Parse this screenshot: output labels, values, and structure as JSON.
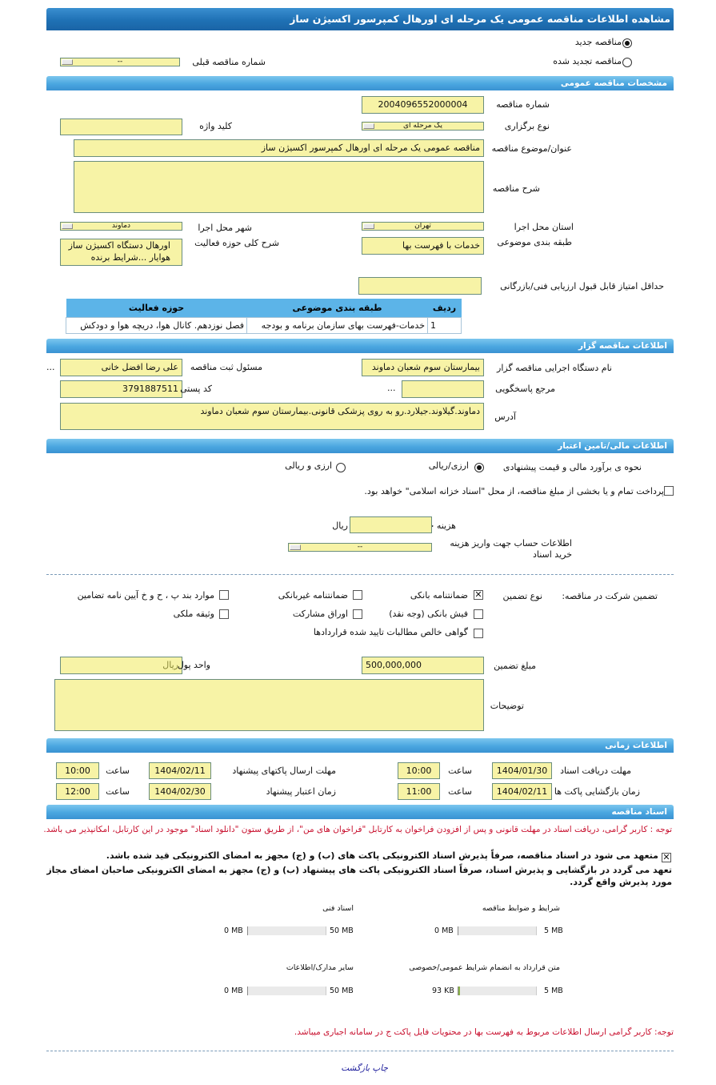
{
  "title": "مشاهده اطلاعات مناقصه عمومی یک مرحله ای اورهال کمپرسور اکسیژن ساز",
  "tender_type": {
    "new_label": "مناقصه جدید",
    "new_selected": true,
    "renewed_label": "مناقصه تجدید شده",
    "renewed_selected": false,
    "prev_number_label": "شماره مناقصه قبلی",
    "prev_number_value": "--"
  },
  "general": {
    "header": "مشخصات مناقصه عمومی",
    "number_label": "شماره مناقصه",
    "number_value": "2004096552000004",
    "holding_type_label": "نوع برگزاری",
    "holding_type_value": "یک مرحله ای",
    "keyword_label": "کلید واژه",
    "keyword_value": "",
    "subject_label": "عنوان/موضوع مناقصه",
    "subject_value": "مناقصه عمومی یک مرحله ای اورهال کمپرسور اکسیژن ساز",
    "description_label": "شرح مناقصه",
    "description_value": "",
    "province_label": "استان محل اجرا",
    "province_value": "تهران",
    "city_label": "شهر محل اجرا",
    "city_value": "دماوند",
    "category_label": "طبقه بندی موضوعی",
    "category_value": "خدمات با فهرست بها",
    "activity_desc_label": "شرح کلی حوزه فعالیت",
    "activity_desc_value": "اورهال دستگاه اکسیژن ساز هوایار ...شرایط برنده",
    "min_score_label": "حداقل امتیاز قابل قبول ارزیابی فنی/بازرگانی",
    "min_score_value": "",
    "table": {
      "headers": [
        "ردیف",
        "طبقه بندی موضوعی",
        "حوزه فعالیت"
      ],
      "rows": [
        [
          "1",
          "خدمات-فهرست بهای سازمان برنامه و بودجه",
          "فصل نوزدهم. کانال هوا، دریچه هوا و دودکش"
        ]
      ]
    }
  },
  "organizer": {
    "header": "اطلاعات مناقصه گزار",
    "org_label": "نام دستگاه اجرایی مناقصه گزار",
    "org_value": "بیمارستان سوم شعبان دماوند",
    "responsible_label": "مسئول ثبت مناقصه",
    "responsible_value": "علی رضا افضل خانی",
    "reference_label": "مرجع پاسخگویی",
    "reference_value": "",
    "postal_label": "کد پستی",
    "postal_value": "3791887511",
    "address_label": "آدرس",
    "address_value": "دماوند.گیلاوند.جیلارد.رو به روی پزشکی قانونی.بیمارستان سوم شعبان دماوند",
    "more": "..."
  },
  "finance": {
    "header": "اطلاعات مالی/تامین اعتبار",
    "estimate_label": "نحوه ی برآورد مالی و قیمت پیشنهادی",
    "opt_rial": "ارزی/ریالی",
    "opt_rial_selected": true,
    "opt_both": "ارزی و ریالی",
    "opt_both_selected": false,
    "treasury_text": "پرداخت تمام و یا بخشی از مبلغ مناقصه، از محل \"اسناد خزانه اسلامی\" خواهد بود.",
    "treasury_checked": false,
    "doc_cost_label": "هزینه خرید اسناد",
    "doc_cost_value": "",
    "doc_cost_unit": "ریال",
    "account_label": "اطلاعات حساب جهت واریز هزینه خرید اسناد",
    "account_value": "--"
  },
  "guarantee": {
    "label": "تضمین شرکت در مناقصه:",
    "type_label": "نوع تضمین",
    "options": [
      {
        "label": "ضمانتنامه بانکی",
        "checked": true
      },
      {
        "label": "ضمانتنامه غیربانکی",
        "checked": false
      },
      {
        "label": "موارد بند پ ، ح و خ آیین نامه تضامین",
        "checked": false
      },
      {
        "label": "فیش بانکی (وجه نقد)",
        "checked": false
      },
      {
        "label": "اوراق مشارکت",
        "checked": false
      },
      {
        "label": "وثیقه ملکی",
        "checked": false
      },
      {
        "label": "گواهی خالص مطالبات تایید شده قراردادها",
        "checked": false
      }
    ],
    "amount_label": "مبلغ تضمین",
    "amount_value": "500,000,000",
    "currency_label": "واحد پول",
    "currency_value": "ریال",
    "notes_label": "توضیحات",
    "notes_value": ""
  },
  "timing": {
    "header": "اطلاعات زمانی",
    "time_label": "ساعت",
    "doc_deadline_label": "مهلت دریافت اسناد",
    "doc_deadline_date": "1404/01/30",
    "doc_deadline_time": "10:00",
    "submit_deadline_label": "مهلت ارسال پاکتهای پیشنهاد",
    "submit_deadline_date": "1404/02/11",
    "submit_deadline_time": "10:00",
    "opening_label": "زمان بازگشایی پاکت ها",
    "opening_date": "1404/02/11",
    "opening_time": "11:00",
    "validity_label": "زمان اعتبار پیشنهاد",
    "validity_date": "1404/02/30",
    "validity_time": "12:00"
  },
  "documents": {
    "header": "اسناد مناقصه",
    "note": "توجه : کاربر گرامی، دریافت اسناد در مهلت قانونی و پس از افزودن فراخوان به کارتابل \"فراخوان های من\"، از طریق ستون \"دانلود اسناد\" موجود در این کارتابل، امکانپذیر می باشد.",
    "commit1": "متعهد می شود در اسناد مناقصه، صرفاً پذیرش اسناد الکترونیکی پاکت های (ب) و (ج) مجهز به امضای الکترونیکی قید شده باشد.",
    "commit1_checked": true,
    "commit2": "تعهد می گردد در بازگشایی و پذیرش اسناد، صرفاً اسناد الکترونیکی پاکت های پیشنهاد (ب) و (ج) مجهز به امضای الکترونیکی صاحبان امضای مجاز مورد پذیرش واقع گردد.",
    "files": [
      {
        "label": "شرایط و ضوابط مناقصه",
        "size": "0 MB",
        "max": "5 MB",
        "fraction": 0
      },
      {
        "label": "اسناد فنی",
        "size": "0 MB",
        "max": "50 MB",
        "fraction": 0
      },
      {
        "label": "متن قرارداد به انضمام شرایط عمومی/خصوصی",
        "size": "93 KB",
        "max": "5 MB",
        "fraction": 0.018
      },
      {
        "label": "سایر مدارک/اطلاعات",
        "size": "0 MB",
        "max": "50 MB",
        "fraction": 0
      }
    ],
    "note2": "توجه: کاربر گرامی ارسال اطلاعات مربوط به فهرست بها در محتویات فایل پاکت ج در سامانه اجباری میباشد."
  },
  "footer": {
    "print": "چاپ",
    "back": "بازگشت"
  },
  "colors": {
    "input_bg": "#f7f3a6",
    "header_blue": "#4aa6e0",
    "note_red": "#c8102e",
    "link_blue": "#1a1a9a"
  }
}
